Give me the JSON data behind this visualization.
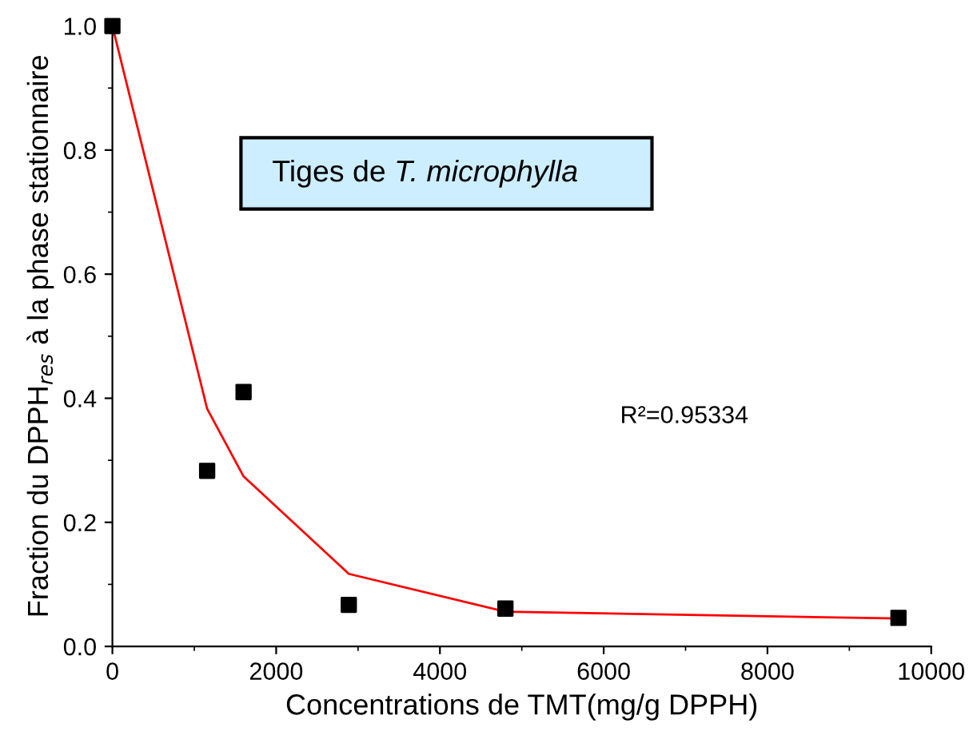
{
  "chart_data": {
    "type": "scatter",
    "xlabel": "Concentrations de TMT(mg/g DPPH)",
    "ylabel": "Fraction du DPPH$_{res}$ à la phase stationnaire",
    "series": [
      {
        "color": "#000000",
        "marker": "square",
        "x": [
          0,
          1157,
          1602,
          2887,
          4800,
          9600
        ],
        "values": [
          1.0,
          0.283,
          0.41,
          0.067,
          0.061,
          0.046
        ]
      },
      {
        "type": "line",
        "color": "#ff0000",
        "marker": "none",
        "x": [
          0,
          1157,
          1602,
          2887,
          4800,
          9600
        ],
        "values": [
          1.0,
          0.383,
          0.274,
          0.117,
          0.056,
          0.045
        ]
      }
    ],
    "annotations": [
      "Tiges de T. microphylla",
      "R²=0.95334"
    ],
    "xlim": [
      0,
      10000
    ],
    "xticks": [
      0,
      2000,
      4000,
      6000,
      8000,
      10000
    ],
    "ylim": [
      0,
      1.0
    ],
    "yticks": [
      {
        "value": 0,
        "label": "0.0"
      },
      0.2,
      0.4,
      0.6,
      0.8,
      {
        "value": 1,
        "label": "1.0"
      }
    ],
    "grid": false,
    "legend": false
  }
}
